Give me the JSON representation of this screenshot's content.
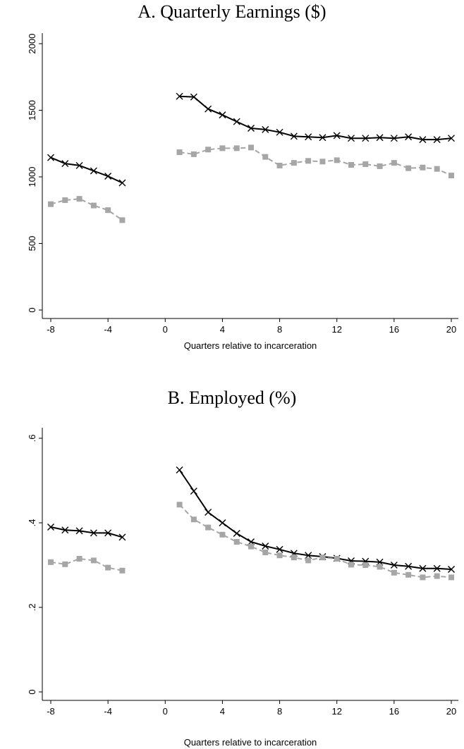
{
  "colors": {
    "series1": "#000000",
    "series2": "#a6a6a6",
    "axis": "#000000"
  },
  "chart_data": [
    {
      "type": "line",
      "title": "A. Quarterly Earnings ($)",
      "xlabel": "Quarters relative to incarceration",
      "ylabel": "",
      "xlim": [
        -8,
        20
      ],
      "ylim": [
        0,
        2000
      ],
      "xticks": [
        -8,
        -4,
        0,
        4,
        8,
        12,
        16,
        20
      ],
      "xtick_labels": [
        "-8",
        "-4",
        "0",
        "4",
        "8",
        "12",
        "16",
        "20"
      ],
      "yticks": [
        0,
        500,
        1000,
        1500,
        2000
      ],
      "ytick_labels": [
        "0",
        "500",
        "1000",
        "1500",
        "2000"
      ],
      "grid": false,
      "legend": "none",
      "series": [
        {
          "marker": "x",
          "style": "solid",
          "segments": [
            {
              "x": [
                -8,
                -7,
                -6,
                -5,
                -4,
                -3
              ],
              "y": [
                1145,
                1100,
                1085,
                1045,
                1005,
                955
              ]
            },
            {
              "x": [
                1,
                2,
                3,
                4,
                5,
                6,
                7,
                8,
                9,
                10,
                11,
                12,
                13,
                14,
                15,
                16,
                17,
                18,
                19,
                20
              ],
              "y": [
                1605,
                1600,
                1510,
                1465,
                1415,
                1365,
                1355,
                1335,
                1305,
                1300,
                1295,
                1310,
                1290,
                1290,
                1295,
                1290,
                1300,
                1280,
                1280,
                1290
              ]
            }
          ]
        },
        {
          "marker": "square",
          "style": "dashed",
          "segments": [
            {
              "x": [
                -8,
                -7,
                -6,
                -5,
                -4,
                -3
              ],
              "y": [
                795,
                825,
                835,
                785,
                750,
                675
              ]
            },
            {
              "x": [
                1,
                2,
                3,
                4,
                5,
                6,
                7,
                8,
                9,
                10,
                11,
                12,
                13,
                14,
                15,
                16,
                17,
                18,
                19,
                20
              ],
              "y": [
                1185,
                1170,
                1205,
                1215,
                1215,
                1220,
                1150,
                1085,
                1105,
                1120,
                1115,
                1125,
                1090,
                1095,
                1080,
                1105,
                1065,
                1070,
                1060,
                1010
              ]
            }
          ]
        }
      ]
    },
    {
      "type": "line",
      "title": "B. Employed (%)",
      "xlabel": "Quarters relative to incarceration",
      "ylabel": "",
      "xlim": [
        -8,
        20
      ],
      "ylim": [
        0,
        0.6
      ],
      "xticks": [
        -8,
        -4,
        0,
        4,
        8,
        12,
        16,
        20
      ],
      "xtick_labels": [
        "-8",
        "-4",
        "0",
        "4",
        "8",
        "12",
        "16",
        "20"
      ],
      "yticks": [
        0,
        0.2,
        0.4,
        0.6
      ],
      "ytick_labels": [
        "0",
        ".2",
        ".4",
        ".6"
      ],
      "grid": false,
      "legend": "none",
      "series": [
        {
          "marker": "x",
          "style": "solid",
          "segments": [
            {
              "x": [
                -8,
                -7,
                -6,
                -5,
                -4,
                -3
              ],
              "y": [
                0.39,
                0.383,
                0.381,
                0.376,
                0.376,
                0.366
              ]
            },
            {
              "x": [
                1,
                2,
                3,
                4,
                5,
                6,
                7,
                8,
                9,
                10,
                11,
                12,
                13,
                14,
                15,
                16,
                17,
                18,
                19,
                20
              ],
              "y": [
                0.525,
                0.475,
                0.425,
                0.4,
                0.375,
                0.355,
                0.345,
                0.337,
                0.328,
                0.323,
                0.32,
                0.316,
                0.31,
                0.309,
                0.307,
                0.3,
                0.297,
                0.292,
                0.292,
                0.29
              ]
            }
          ]
        },
        {
          "marker": "square",
          "style": "dashed",
          "segments": [
            {
              "x": [
                -8,
                -7,
                -6,
                -5,
                -4,
                -3
              ],
              "y": [
                0.307,
                0.302,
                0.315,
                0.311,
                0.294,
                0.287
              ]
            },
            {
              "x": [
                1,
                2,
                3,
                4,
                5,
                6,
                7,
                8,
                9,
                10,
                11,
                12,
                13,
                14,
                15,
                16,
                17,
                18,
                19,
                20
              ],
              "y": [
                0.443,
                0.408,
                0.389,
                0.372,
                0.355,
                0.344,
                0.33,
                0.323,
                0.318,
                0.311,
                0.318,
                0.315,
                0.301,
                0.3,
                0.296,
                0.282,
                0.277,
                0.271,
                0.274,
                0.271
              ]
            }
          ]
        }
      ]
    }
  ]
}
